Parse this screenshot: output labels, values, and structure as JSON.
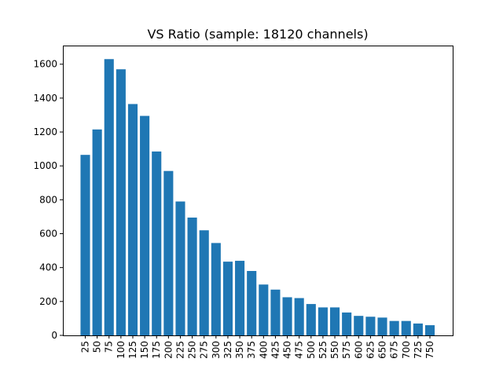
{
  "chart_data": {
    "type": "bar",
    "title": "VS Ratio (sample: 18120 channels)",
    "xlabel": "",
    "ylabel": "",
    "ylim": [
      0,
      1710
    ],
    "yticks": [
      0,
      200,
      400,
      600,
      800,
      1000,
      1200,
      1400,
      1600
    ],
    "categories": [
      "25",
      "50",
      "75",
      "100",
      "125",
      "150",
      "175",
      "200",
      "225",
      "250",
      "275",
      "300",
      "325",
      "350",
      "375",
      "400",
      "425",
      "450",
      "475",
      "500",
      "525",
      "550",
      "575",
      "600",
      "625",
      "650",
      "675",
      "700",
      "725",
      "750"
    ],
    "values": [
      1065,
      1215,
      1630,
      1570,
      1365,
      1295,
      1085,
      970,
      790,
      695,
      620,
      545,
      435,
      440,
      380,
      300,
      270,
      225,
      220,
      185,
      165,
      165,
      135,
      115,
      110,
      105,
      85,
      85,
      70,
      60
    ],
    "bar_color": "#1f77b4",
    "grid": false,
    "legend": "none"
  }
}
